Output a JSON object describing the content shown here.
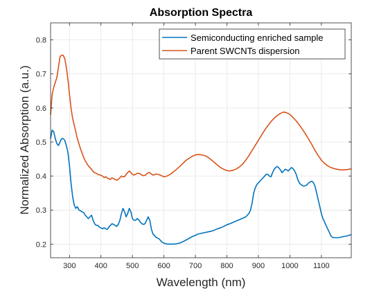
{
  "chart_data": {
    "type": "line",
    "title": "Absorption Spectra",
    "xlabel": "Wavelength (nm)",
    "ylabel": "Normalized Absorption (a.u.)",
    "xlim": [
      240,
      1195
    ],
    "ylim": [
      0.16,
      0.85
    ],
    "xticks": [
      300,
      400,
      500,
      600,
      700,
      800,
      900,
      1000,
      1100
    ],
    "yticks": [
      0.2,
      0.3,
      0.4,
      0.5,
      0.6,
      0.7,
      0.8
    ],
    "grid": true,
    "legend_position": "top-right",
    "series": [
      {
        "name": "Semiconducting enriched sample",
        "color": "#0072BD",
        "points": [
          [
            240,
            0.51
          ],
          [
            245,
            0.535
          ],
          [
            250,
            0.53
          ],
          [
            255,
            0.51
          ],
          [
            260,
            0.495
          ],
          [
            265,
            0.49
          ],
          [
            270,
            0.5
          ],
          [
            275,
            0.51
          ],
          [
            280,
            0.51
          ],
          [
            285,
            0.505
          ],
          [
            290,
            0.49
          ],
          [
            295,
            0.47
          ],
          [
            300,
            0.43
          ],
          [
            305,
            0.38
          ],
          [
            310,
            0.34
          ],
          [
            315,
            0.315
          ],
          [
            320,
            0.305
          ],
          [
            325,
            0.31
          ],
          [
            330,
            0.3
          ],
          [
            335,
            0.298
          ],
          [
            340,
            0.295
          ],
          [
            345,
            0.293
          ],
          [
            350,
            0.285
          ],
          [
            355,
            0.28
          ],
          [
            360,
            0.275
          ],
          [
            365,
            0.28
          ],
          [
            370,
            0.285
          ],
          [
            375,
            0.27
          ],
          [
            380,
            0.26
          ],
          [
            385,
            0.255
          ],
          [
            390,
            0.255
          ],
          [
            395,
            0.25
          ],
          [
            400,
            0.248
          ],
          [
            405,
            0.245
          ],
          [
            410,
            0.248
          ],
          [
            415,
            0.245
          ],
          [
            420,
            0.243
          ],
          [
            425,
            0.25
          ],
          [
            430,
            0.255
          ],
          [
            435,
            0.26
          ],
          [
            440,
            0.258
          ],
          [
            445,
            0.255
          ],
          [
            450,
            0.252
          ],
          [
            455,
            0.258
          ],
          [
            460,
            0.27
          ],
          [
            465,
            0.29
          ],
          [
            470,
            0.305
          ],
          [
            475,
            0.295
          ],
          [
            480,
            0.28
          ],
          [
            485,
            0.29
          ],
          [
            490,
            0.305
          ],
          [
            495,
            0.295
          ],
          [
            500,
            0.275
          ],
          [
            505,
            0.27
          ],
          [
            510,
            0.27
          ],
          [
            515,
            0.275
          ],
          [
            520,
            0.272
          ],
          [
            525,
            0.265
          ],
          [
            530,
            0.26
          ],
          [
            535,
            0.258
          ],
          [
            540,
            0.26
          ],
          [
            545,
            0.27
          ],
          [
            550,
            0.28
          ],
          [
            555,
            0.27
          ],
          [
            560,
            0.245
          ],
          [
            565,
            0.23
          ],
          [
            570,
            0.225
          ],
          [
            575,
            0.22
          ],
          [
            580,
            0.218
          ],
          [
            585,
            0.215
          ],
          [
            590,
            0.21
          ],
          [
            595,
            0.205
          ],
          [
            600,
            0.203
          ],
          [
            610,
            0.2
          ],
          [
            620,
            0.2
          ],
          [
            630,
            0.2
          ],
          [
            640,
            0.201
          ],
          [
            650,
            0.203
          ],
          [
            660,
            0.207
          ],
          [
            670,
            0.212
          ],
          [
            680,
            0.217
          ],
          [
            690,
            0.222
          ],
          [
            700,
            0.226
          ],
          [
            710,
            0.23
          ],
          [
            720,
            0.232
          ],
          [
            730,
            0.234
          ],
          [
            740,
            0.236
          ],
          [
            750,
            0.238
          ],
          [
            760,
            0.241
          ],
          [
            770,
            0.245
          ],
          [
            780,
            0.248
          ],
          [
            790,
            0.252
          ],
          [
            800,
            0.257
          ],
          [
            810,
            0.26
          ],
          [
            820,
            0.264
          ],
          [
            830,
            0.268
          ],
          [
            840,
            0.272
          ],
          [
            850,
            0.276
          ],
          [
            860,
            0.28
          ],
          [
            870,
            0.29
          ],
          [
            875,
            0.3
          ],
          [
            880,
            0.32
          ],
          [
            885,
            0.35
          ],
          [
            890,
            0.365
          ],
          [
            895,
            0.375
          ],
          [
            900,
            0.38
          ],
          [
            905,
            0.385
          ],
          [
            910,
            0.39
          ],
          [
            915,
            0.395
          ],
          [
            920,
            0.4
          ],
          [
            925,
            0.405
          ],
          [
            930,
            0.405
          ],
          [
            935,
            0.4
          ],
          [
            940,
            0.398
          ],
          [
            945,
            0.41
          ],
          [
            950,
            0.42
          ],
          [
            955,
            0.425
          ],
          [
            960,
            0.428
          ],
          [
            965,
            0.424
          ],
          [
            970,
            0.418
          ],
          [
            975,
            0.41
          ],
          [
            980,
            0.415
          ],
          [
            985,
            0.42
          ],
          [
            990,
            0.418
          ],
          [
            995,
            0.415
          ],
          [
            1000,
            0.42
          ],
          [
            1005,
            0.425
          ],
          [
            1010,
            0.422
          ],
          [
            1015,
            0.415
          ],
          [
            1020,
            0.405
          ],
          [
            1025,
            0.39
          ],
          [
            1030,
            0.38
          ],
          [
            1035,
            0.375
          ],
          [
            1040,
            0.372
          ],
          [
            1045,
            0.37
          ],
          [
            1050,
            0.372
          ],
          [
            1055,
            0.375
          ],
          [
            1060,
            0.38
          ],
          [
            1065,
            0.383
          ],
          [
            1070,
            0.385
          ],
          [
            1075,
            0.38
          ],
          [
            1080,
            0.37
          ],
          [
            1085,
            0.35
          ],
          [
            1090,
            0.33
          ],
          [
            1095,
            0.31
          ],
          [
            1100,
            0.29
          ],
          [
            1105,
            0.275
          ],
          [
            1110,
            0.265
          ],
          [
            1115,
            0.255
          ],
          [
            1120,
            0.245
          ],
          [
            1125,
            0.235
          ],
          [
            1130,
            0.225
          ],
          [
            1135,
            0.22
          ],
          [
            1140,
            0.219
          ],
          [
            1150,
            0.219
          ],
          [
            1160,
            0.22
          ],
          [
            1170,
            0.222
          ],
          [
            1180,
            0.224
          ],
          [
            1195,
            0.228
          ]
        ]
      },
      {
        "name": "Parent SWCNTs dispersion",
        "color": "#D95319",
        "points": [
          [
            240,
            0.58
          ],
          [
            245,
            0.64
          ],
          [
            250,
            0.66
          ],
          [
            255,
            0.675
          ],
          [
            260,
            0.69
          ],
          [
            265,
            0.72
          ],
          [
            270,
            0.75
          ],
          [
            275,
            0.755
          ],
          [
            280,
            0.755
          ],
          [
            285,
            0.745
          ],
          [
            290,
            0.72
          ],
          [
            295,
            0.685
          ],
          [
            300,
            0.64
          ],
          [
            305,
            0.6
          ],
          [
            310,
            0.57
          ],
          [
            315,
            0.55
          ],
          [
            320,
            0.53
          ],
          [
            325,
            0.51
          ],
          [
            330,
            0.495
          ],
          [
            335,
            0.48
          ],
          [
            340,
            0.468
          ],
          [
            345,
            0.455
          ],
          [
            350,
            0.445
          ],
          [
            355,
            0.437
          ],
          [
            360,
            0.43
          ],
          [
            365,
            0.425
          ],
          [
            370,
            0.42
          ],
          [
            375,
            0.413
          ],
          [
            380,
            0.41
          ],
          [
            385,
            0.408
          ],
          [
            390,
            0.405
          ],
          [
            395,
            0.404
          ],
          [
            400,
            0.402
          ],
          [
            405,
            0.4
          ],
          [
            410,
            0.395
          ],
          [
            415,
            0.398
          ],
          [
            420,
            0.394
          ],
          [
            425,
            0.392
          ],
          [
            430,
            0.39
          ],
          [
            435,
            0.395
          ],
          [
            440,
            0.392
          ],
          [
            445,
            0.39
          ],
          [
            450,
            0.388
          ],
          [
            455,
            0.39
          ],
          [
            460,
            0.395
          ],
          [
            465,
            0.4
          ],
          [
            470,
            0.398
          ],
          [
            475,
            0.398
          ],
          [
            480,
            0.405
          ],
          [
            485,
            0.41
          ],
          [
            490,
            0.415
          ],
          [
            495,
            0.41
          ],
          [
            500,
            0.405
          ],
          [
            505,
            0.403
          ],
          [
            510,
            0.405
          ],
          [
            515,
            0.408
          ],
          [
            520,
            0.408
          ],
          [
            525,
            0.406
          ],
          [
            530,
            0.403
          ],
          [
            535,
            0.401
          ],
          [
            540,
            0.402
          ],
          [
            545,
            0.406
          ],
          [
            550,
            0.41
          ],
          [
            555,
            0.41
          ],
          [
            560,
            0.406
          ],
          [
            565,
            0.403
          ],
          [
            570,
            0.404
          ],
          [
            575,
            0.406
          ],
          [
            580,
            0.405
          ],
          [
            585,
            0.404
          ],
          [
            590,
            0.402
          ],
          [
            595,
            0.4
          ],
          [
            600,
            0.398
          ],
          [
            610,
            0.4
          ],
          [
            620,
            0.405
          ],
          [
            630,
            0.412
          ],
          [
            640,
            0.42
          ],
          [
            650,
            0.428
          ],
          [
            660,
            0.437
          ],
          [
            670,
            0.446
          ],
          [
            680,
            0.452
          ],
          [
            690,
            0.458
          ],
          [
            700,
            0.462
          ],
          [
            710,
            0.463
          ],
          [
            720,
            0.462
          ],
          [
            730,
            0.46
          ],
          [
            740,
            0.455
          ],
          [
            750,
            0.448
          ],
          [
            760,
            0.44
          ],
          [
            770,
            0.432
          ],
          [
            780,
            0.425
          ],
          [
            790,
            0.42
          ],
          [
            800,
            0.416
          ],
          [
            810,
            0.415
          ],
          [
            820,
            0.417
          ],
          [
            830,
            0.421
          ],
          [
            840,
            0.427
          ],
          [
            850,
            0.435
          ],
          [
            860,
            0.447
          ],
          [
            870,
            0.46
          ],
          [
            880,
            0.475
          ],
          [
            890,
            0.49
          ],
          [
            900,
            0.505
          ],
          [
            910,
            0.52
          ],
          [
            920,
            0.535
          ],
          [
            930,
            0.548
          ],
          [
            940,
            0.56
          ],
          [
            950,
            0.57
          ],
          [
            960,
            0.578
          ],
          [
            970,
            0.584
          ],
          [
            980,
            0.588
          ],
          [
            990,
            0.586
          ],
          [
            1000,
            0.581
          ],
          [
            1010,
            0.572
          ],
          [
            1020,
            0.562
          ],
          [
            1030,
            0.55
          ],
          [
            1040,
            0.537
          ],
          [
            1050,
            0.523
          ],
          [
            1060,
            0.508
          ],
          [
            1070,
            0.492
          ],
          [
            1080,
            0.475
          ],
          [
            1090,
            0.46
          ],
          [
            1100,
            0.447
          ],
          [
            1110,
            0.437
          ],
          [
            1120,
            0.43
          ],
          [
            1130,
            0.425
          ],
          [
            1140,
            0.422
          ],
          [
            1150,
            0.42
          ],
          [
            1160,
            0.418
          ],
          [
            1170,
            0.418
          ],
          [
            1180,
            0.419
          ],
          [
            1195,
            0.421
          ]
        ]
      }
    ]
  }
}
